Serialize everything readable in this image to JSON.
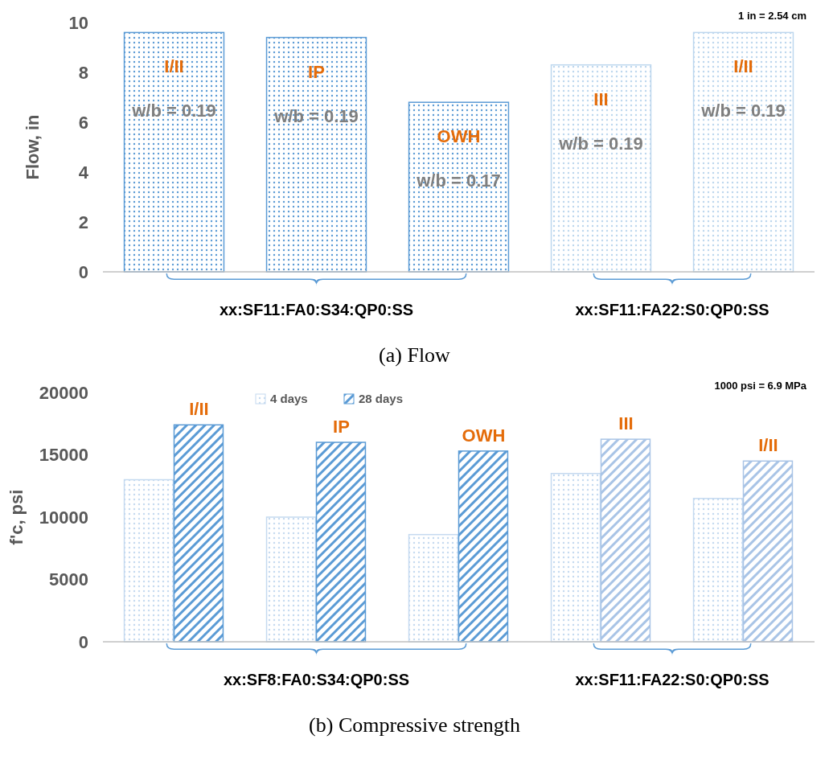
{
  "chart_data": [
    {
      "type": "bar",
      "title": "(a) Flow",
      "ylabel": "Flow, in",
      "categories": [
        null,
        null,
        null,
        null,
        null
      ],
      "values": [
        9.6,
        9.4,
        6.8,
        8.3,
        9.6
      ],
      "colors": [
        "#5b9bd5",
        "#5b9bd5",
        "#5b9bd5",
        "#bdd7ee",
        "#bdd7ee"
      ],
      "ylim": [
        0,
        10
      ],
      "yticks": [
        0,
        2,
        4,
        6,
        8,
        10
      ],
      "grid": false,
      "legend": false,
      "annotations": [
        "1 in = 2.54 cm",
        "xx:SF11:FA0:S34:QP0:SS",
        "xx:SF11:FA22:S0:QP0:SS",
        "I/II",
        "IP",
        "OWH",
        "III",
        "I/II",
        "w/b = 0.19",
        "w/b = 0.19",
        "w/b = 0.17",
        "w/b = 0.19",
        "w/b = 0.19"
      ]
    },
    {
      "type": "bar",
      "title": "(b) Compressive strength",
      "ylabel": "f'c, psi",
      "categories": [
        null,
        null,
        null,
        null,
        null
      ],
      "series": [
        {
          "name": "4 days",
          "color": "#c5daf0",
          "values": [
            13000,
            10000,
            8600,
            13500,
            11500
          ]
        },
        {
          "name": "28 days",
          "color": "#5b9bd5",
          "colors": [
            "#5b9bd5",
            "#5b9bd5",
            "#5b9bd5",
            "#a9c4e6",
            "#a9c4e6"
          ],
          "values": [
            17400,
            16000,
            15300,
            16250,
            14500
          ]
        }
      ],
      "ylim": [
        0,
        20000
      ],
      "yticks": [
        0,
        5000,
        10000,
        15000,
        20000
      ],
      "grid": false,
      "legend": "top left",
      "annotations": [
        "1000 psi = 6.9 MPa",
        "xx:SF8:FA0:S34:QP0:SS",
        "xx:SF11:FA22:S0:QP0:SS",
        "I/II",
        "IP",
        "OWH",
        "III",
        "I/II"
      ]
    }
  ]
}
